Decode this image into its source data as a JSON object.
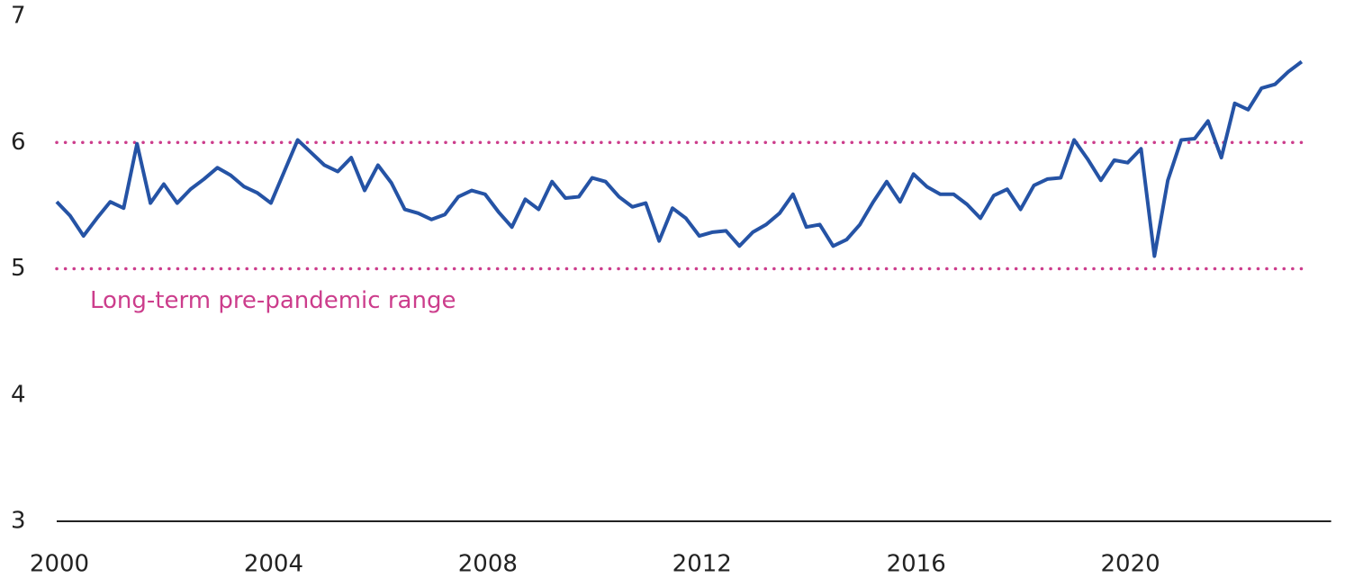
{
  "chart_data": {
    "type": "line",
    "annotation": "Long-term pre-pandemic range",
    "reference_lines": [
      5,
      6
    ],
    "reference_color": "#cc3d8c",
    "x": [
      2000,
      2000.25,
      2000.5,
      2000.75,
      2001,
      2001.25,
      2001.5,
      2001.75,
      2002,
      2002.25,
      2002.5,
      2002.75,
      2003,
      2003.25,
      2003.5,
      2003.75,
      2004,
      2004.25,
      2004.5,
      2004.75,
      2005,
      2005.25,
      2005.5,
      2005.75,
      2006,
      2006.25,
      2006.5,
      2006.75,
      2007,
      2007.25,
      2007.5,
      2007.75,
      2008,
      2008.25,
      2008.5,
      2008.75,
      2009,
      2009.25,
      2009.5,
      2009.75,
      2010,
      2010.25,
      2010.5,
      2010.75,
      2011,
      2011.25,
      2011.5,
      2011.75,
      2012,
      2012.25,
      2012.5,
      2012.75,
      2013,
      2013.25,
      2013.5,
      2013.75,
      2014,
      2014.25,
      2014.5,
      2014.75,
      2015,
      2015.25,
      2015.5,
      2015.75,
      2016,
      2016.25,
      2016.5,
      2016.75,
      2017,
      2017.25,
      2017.5,
      2017.75,
      2018,
      2018.25,
      2018.5,
      2018.75,
      2019,
      2019.25,
      2019.5,
      2019.75,
      2020,
      2020.25,
      2020.5,
      2020.75,
      2021,
      2021.25,
      2021.5,
      2021.75,
      2022,
      2022.25,
      2022.5,
      2022.75,
      2023,
      2023.25
    ],
    "series": [
      {
        "color": "#2553a5",
        "values": [
          5.53,
          5.42,
          5.26,
          5.4,
          5.53,
          5.48,
          5.99,
          5.52,
          5.67,
          5.52,
          5.63,
          5.71,
          5.8,
          5.74,
          5.65,
          5.6,
          5.52,
          5.77,
          6.02,
          5.92,
          5.82,
          5.77,
          5.88,
          5.62,
          5.82,
          5.68,
          5.47,
          5.44,
          5.39,
          5.43,
          5.57,
          5.62,
          5.59,
          5.45,
          5.33,
          5.55,
          5.47,
          5.69,
          5.56,
          5.57,
          5.72,
          5.69,
          5.57,
          5.49,
          5.52,
          5.22,
          5.48,
          5.4,
          5.26,
          5.29,
          5.3,
          5.18,
          5.29,
          5.35,
          5.44,
          5.59,
          5.33,
          5.35,
          5.18,
          5.23,
          5.35,
          5.53,
          5.69,
          5.53,
          5.75,
          5.65,
          5.59,
          5.59,
          5.51,
          5.4,
          5.58,
          5.63,
          5.47,
          5.66,
          5.71,
          5.72,
          6.02,
          5.87,
          5.7,
          5.86,
          5.84,
          5.95,
          5.1,
          5.7,
          6.02,
          6.03,
          6.17,
          5.88,
          6.31,
          6.26,
          6.43,
          6.46,
          6.56,
          6.64
        ]
      }
    ],
    "xlim": [
      2000,
      2023.8
    ],
    "xticks": [
      2000,
      2004,
      2008,
      2012,
      2016,
      2020
    ],
    "ylim": [
      3,
      7
    ],
    "yticks": [
      3,
      4,
      5,
      6,
      7
    ],
    "grid": false
  }
}
